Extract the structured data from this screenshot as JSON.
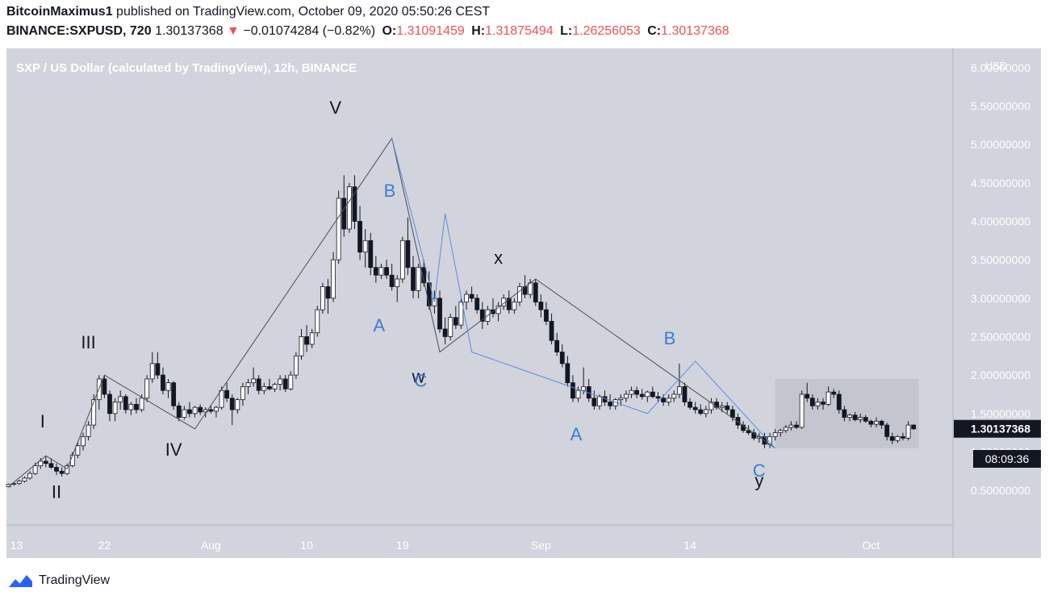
{
  "header": {
    "author": "BitcoinMaximus1",
    "published": "published on TradingView.com, October 09, 2020 05:50:26 CEST",
    "symbol": "BINANCE:SXPUSD, 720",
    "last": "1.30137368",
    "arrow": "▼",
    "change": "−0.01074284 (−0.82%)",
    "o_label": "O:",
    "o": "1.31091459",
    "h_label": "H:",
    "h": "1.31875494",
    "l_label": "L:",
    "l": "1.26256053",
    "c_label": "C:",
    "c": "1.30137368"
  },
  "footer": {
    "brand": "TradingView",
    "logo_icon": "tradingview-logo-icon"
  },
  "colors": {
    "plot_bg": "#d1d4dc",
    "zone": "#c3c6ce",
    "black_wave": "#4a4e58",
    "blue_wave": "#5b8dd9",
    "label_blue": "#3d7bd6"
  },
  "chart_data": {
    "type": "candlestick",
    "title": "SXP / US Dollar (calculated by TradingView), 12h, BINANCE",
    "currency": "USD",
    "ylim": [
      0.05,
      6.25
    ],
    "y_ticks": [
      "6.00000000",
      "5.50000000",
      "5.00000000",
      "4.50000000",
      "4.00000000",
      "3.50000000",
      "3.00000000",
      "2.50000000",
      "2.00000000",
      "1.50000000",
      "1.00000000",
      "0.50000000"
    ],
    "y_tick_values": [
      6.0,
      5.5,
      5.0,
      4.5,
      4.0,
      3.5,
      3.0,
      2.5,
      2.0,
      1.5,
      1.0,
      0.5
    ],
    "x_ticks": [
      "13",
      "22",
      "Aug",
      "10",
      "19",
      "Sep",
      "14",
      "Oct"
    ],
    "x_tick_days": [
      0,
      9,
      19,
      28,
      37,
      50,
      64,
      81
    ],
    "x_unit": "days since Jul 13, 2020",
    "x_range": [
      -0.2,
      88.7
    ],
    "price_label": "1.30137368",
    "countdown": "08:09:36",
    "ohlc": [
      [
        0.55,
        0.59,
        0.54,
        0.58
      ],
      [
        0.58,
        0.6,
        0.56,
        0.59
      ],
      [
        0.59,
        0.64,
        0.57,
        0.62
      ],
      [
        0.62,
        0.68,
        0.6,
        0.66
      ],
      [
        0.66,
        0.75,
        0.64,
        0.72
      ],
      [
        0.72,
        0.86,
        0.7,
        0.82
      ],
      [
        0.82,
        0.92,
        0.78,
        0.88
      ],
      [
        0.88,
        0.95,
        0.8,
        0.85
      ],
      [
        0.85,
        0.92,
        0.78,
        0.8
      ],
      [
        0.8,
        0.85,
        0.7,
        0.75
      ],
      [
        0.75,
        0.8,
        0.68,
        0.72
      ],
      [
        0.72,
        0.85,
        0.7,
        0.82
      ],
      [
        0.82,
        1.0,
        0.8,
        0.96
      ],
      [
        0.96,
        1.12,
        0.92,
        1.08
      ],
      [
        1.08,
        1.25,
        1.02,
        1.2
      ],
      [
        1.2,
        1.4,
        1.15,
        1.35
      ],
      [
        1.35,
        1.75,
        1.3,
        1.68
      ],
      [
        1.68,
        2.0,
        1.55,
        1.95
      ],
      [
        1.95,
        2.0,
        1.7,
        1.75
      ],
      [
        1.75,
        1.8,
        1.4,
        1.5
      ],
      [
        1.5,
        1.7,
        1.4,
        1.65
      ],
      [
        1.65,
        1.8,
        1.55,
        1.72
      ],
      [
        1.72,
        1.75,
        1.5,
        1.55
      ],
      [
        1.55,
        1.65,
        1.48,
        1.62
      ],
      [
        1.62,
        1.7,
        1.5,
        1.55
      ],
      [
        1.55,
        1.75,
        1.52,
        1.7
      ],
      [
        1.7,
        2.0,
        1.65,
        1.95
      ],
      [
        1.95,
        2.3,
        1.9,
        2.15
      ],
      [
        2.15,
        2.3,
        1.95,
        2.0
      ],
      [
        2.0,
        2.1,
        1.75,
        1.8
      ],
      [
        1.8,
        1.95,
        1.7,
        1.9
      ],
      [
        1.9,
        1.92,
        1.55,
        1.6
      ],
      [
        1.6,
        1.65,
        1.4,
        1.45
      ],
      [
        1.45,
        1.6,
        1.42,
        1.55
      ],
      [
        1.55,
        1.65,
        1.45,
        1.5
      ],
      [
        1.5,
        1.6,
        1.45,
        1.58
      ],
      [
        1.58,
        1.62,
        1.48,
        1.52
      ],
      [
        1.52,
        1.58,
        1.45,
        1.55
      ],
      [
        1.55,
        1.6,
        1.5,
        1.53
      ],
      [
        1.53,
        1.6,
        1.45,
        1.58
      ],
      [
        1.58,
        1.85,
        1.55,
        1.8
      ],
      [
        1.8,
        1.9,
        1.65,
        1.7
      ],
      [
        1.7,
        1.75,
        1.35,
        1.55
      ],
      [
        1.55,
        1.7,
        1.5,
        1.68
      ],
      [
        1.68,
        1.9,
        1.6,
        1.85
      ],
      [
        1.85,
        1.95,
        1.75,
        1.9
      ],
      [
        1.9,
        2.1,
        1.85,
        1.95
      ],
      [
        1.95,
        2.0,
        1.75,
        1.8
      ],
      [
        1.8,
        1.9,
        1.75,
        1.85
      ],
      [
        1.85,
        1.95,
        1.8,
        1.82
      ],
      [
        1.82,
        1.9,
        1.78,
        1.88
      ],
      [
        1.88,
        2.0,
        1.8,
        1.95
      ],
      [
        1.95,
        2.0,
        1.78,
        1.82
      ],
      [
        1.82,
        2.05,
        1.8,
        2.0
      ],
      [
        2.0,
        2.3,
        1.95,
        2.25
      ],
      [
        2.25,
        2.6,
        2.2,
        2.5
      ],
      [
        2.5,
        2.65,
        2.3,
        2.4
      ],
      [
        2.4,
        2.6,
        2.35,
        2.55
      ],
      [
        2.55,
        2.9,
        2.5,
        2.85
      ],
      [
        2.85,
        3.2,
        2.8,
        3.15
      ],
      [
        3.15,
        3.25,
        2.8,
        3.0
      ],
      [
        3.0,
        3.6,
        2.95,
        3.5
      ],
      [
        3.5,
        4.4,
        3.45,
        4.3
      ],
      [
        4.3,
        4.6,
        3.8,
        3.9
      ],
      [
        3.9,
        4.5,
        3.85,
        4.45
      ],
      [
        4.45,
        4.6,
        3.9,
        4.0
      ],
      [
        4.0,
        4.2,
        3.5,
        3.6
      ],
      [
        3.6,
        3.9,
        3.4,
        3.75
      ],
      [
        3.75,
        3.85,
        3.3,
        3.4
      ],
      [
        3.4,
        3.55,
        3.2,
        3.3
      ],
      [
        3.3,
        3.45,
        3.25,
        3.4
      ],
      [
        3.4,
        3.5,
        3.25,
        3.3
      ],
      [
        3.3,
        3.45,
        3.1,
        3.15
      ],
      [
        3.15,
        3.3,
        2.95,
        3.25
      ],
      [
        3.25,
        3.8,
        3.2,
        3.75
      ],
      [
        3.75,
        4.05,
        3.3,
        3.4
      ],
      [
        3.4,
        3.55,
        3.0,
        3.1
      ],
      [
        3.1,
        3.45,
        3.0,
        3.4
      ],
      [
        3.4,
        3.5,
        3.15,
        3.2
      ],
      [
        3.2,
        3.35,
        2.85,
        2.9
      ],
      [
        2.9,
        3.1,
        2.8,
        3.0
      ],
      [
        3.0,
        3.1,
        2.55,
        2.6
      ],
      [
        2.6,
        2.75,
        2.4,
        2.5
      ],
      [
        2.5,
        2.8,
        2.45,
        2.75
      ],
      [
        2.75,
        2.9,
        2.6,
        2.65
      ],
      [
        2.65,
        3.0,
        2.6,
        2.95
      ],
      [
        2.95,
        3.1,
        2.85,
        3.05
      ],
      [
        3.05,
        3.15,
        2.95,
        3.0
      ],
      [
        3.0,
        3.05,
        2.8,
        2.85
      ],
      [
        2.85,
        2.95,
        2.6,
        2.7
      ],
      [
        2.7,
        2.9,
        2.65,
        2.85
      ],
      [
        2.85,
        3.0,
        2.75,
        2.8
      ],
      [
        2.8,
        2.95,
        2.7,
        2.9
      ],
      [
        2.9,
        3.05,
        2.85,
        3.0
      ],
      [
        3.0,
        3.1,
        2.8,
        2.85
      ],
      [
        2.85,
        3.0,
        2.8,
        2.95
      ],
      [
        2.95,
        3.2,
        2.9,
        3.15
      ],
      [
        3.15,
        3.3,
        3.0,
        3.05
      ],
      [
        3.05,
        3.25,
        3.0,
        3.2
      ],
      [
        3.2,
        3.25,
        2.9,
        2.95
      ],
      [
        2.95,
        3.05,
        2.75,
        2.85
      ],
      [
        2.85,
        2.95,
        2.65,
        2.7
      ],
      [
        2.7,
        2.8,
        2.4,
        2.45
      ],
      [
        2.45,
        2.55,
        2.25,
        2.3
      ],
      [
        2.3,
        2.4,
        2.1,
        2.15
      ],
      [
        2.15,
        2.25,
        1.85,
        1.9
      ],
      [
        1.9,
        2.0,
        1.65,
        1.7
      ],
      [
        1.7,
        1.85,
        1.65,
        1.8
      ],
      [
        1.8,
        2.1,
        1.75,
        1.85
      ],
      [
        1.85,
        1.95,
        1.65,
        1.7
      ],
      [
        1.7,
        1.8,
        1.55,
        1.6
      ],
      [
        1.6,
        1.75,
        1.55,
        1.72
      ],
      [
        1.72,
        1.8,
        1.6,
        1.65
      ],
      [
        1.65,
        1.75,
        1.55,
        1.6
      ],
      [
        1.6,
        1.7,
        1.55,
        1.68
      ],
      [
        1.68,
        1.75,
        1.6,
        1.7
      ],
      [
        1.7,
        1.8,
        1.65,
        1.75
      ],
      [
        1.75,
        1.85,
        1.7,
        1.8
      ],
      [
        1.8,
        1.85,
        1.7,
        1.75
      ],
      [
        1.75,
        1.82,
        1.68,
        1.72
      ],
      [
        1.72,
        1.8,
        1.65,
        1.78
      ],
      [
        1.78,
        1.85,
        1.7,
        1.72
      ],
      [
        1.72,
        1.78,
        1.65,
        1.7
      ],
      [
        1.7,
        1.75,
        1.6,
        1.65
      ],
      [
        1.65,
        1.75,
        1.6,
        1.7
      ],
      [
        1.7,
        1.8,
        1.65,
        1.75
      ],
      [
        1.75,
        2.15,
        1.7,
        1.85
      ],
      [
        1.85,
        1.9,
        1.6,
        1.65
      ],
      [
        1.65,
        1.7,
        1.55,
        1.58
      ],
      [
        1.58,
        1.65,
        1.5,
        1.55
      ],
      [
        1.55,
        1.62,
        1.48,
        1.5
      ],
      [
        1.5,
        1.6,
        1.45,
        1.55
      ],
      [
        1.55,
        1.7,
        1.5,
        1.65
      ],
      [
        1.65,
        1.7,
        1.55,
        1.58
      ],
      [
        1.58,
        1.65,
        1.52,
        1.6
      ],
      [
        1.6,
        1.65,
        1.5,
        1.55
      ],
      [
        1.55,
        1.6,
        1.4,
        1.45
      ],
      [
        1.45,
        1.5,
        1.3,
        1.35
      ],
      [
        1.35,
        1.4,
        1.25,
        1.28
      ],
      [
        1.28,
        1.35,
        1.22,
        1.25
      ],
      [
        1.25,
        1.3,
        1.15,
        1.18
      ],
      [
        1.18,
        1.25,
        1.12,
        1.2
      ],
      [
        1.2,
        1.25,
        1.05,
        1.1
      ],
      [
        1.1,
        1.25,
        1.05,
        1.2
      ],
      [
        1.2,
        1.3,
        1.15,
        1.25
      ],
      [
        1.25,
        1.3,
        1.2,
        1.28
      ],
      [
        1.28,
        1.35,
        1.25,
        1.32
      ],
      [
        1.32,
        1.4,
        1.28,
        1.35
      ],
      [
        1.35,
        1.4,
        1.3,
        1.32
      ],
      [
        1.32,
        1.8,
        1.3,
        1.75
      ],
      [
        1.75,
        1.9,
        1.65,
        1.7
      ],
      [
        1.7,
        1.75,
        1.55,
        1.6
      ],
      [
        1.6,
        1.7,
        1.55,
        1.65
      ],
      [
        1.65,
        1.7,
        1.55,
        1.62
      ],
      [
        1.62,
        1.85,
        1.6,
        1.78
      ],
      [
        1.78,
        1.82,
        1.7,
        1.75
      ],
      [
        1.75,
        1.8,
        1.5,
        1.55
      ],
      [
        1.55,
        1.6,
        1.4,
        1.45
      ],
      [
        1.45,
        1.5,
        1.4,
        1.48
      ],
      [
        1.48,
        1.52,
        1.4,
        1.42
      ],
      [
        1.42,
        1.5,
        1.38,
        1.45
      ],
      [
        1.45,
        1.48,
        1.38,
        1.4
      ],
      [
        1.4,
        1.42,
        1.32,
        1.36
      ],
      [
        1.36,
        1.45,
        1.32,
        1.4
      ],
      [
        1.4,
        1.42,
        1.3,
        1.35
      ],
      [
        1.35,
        1.38,
        1.15,
        1.2
      ],
      [
        1.2,
        1.25,
        1.1,
        1.15
      ],
      [
        1.15,
        1.22,
        1.12,
        1.2
      ],
      [
        1.2,
        1.25,
        1.15,
        1.18
      ],
      [
        1.18,
        1.4,
        1.15,
        1.35
      ],
      [
        1.35,
        1.36,
        1.29,
        1.3
      ]
    ],
    "black_wave": [
      [
        0,
        0.55
      ],
      [
        3.5,
        0.95
      ],
      [
        5.5,
        0.78
      ],
      [
        9,
        2.0
      ],
      [
        17.5,
        1.3
      ],
      [
        36,
        5.08
      ],
      [
        40.5,
        2.3
      ],
      [
        49.5,
        3.25
      ],
      [
        72,
        1.05
      ]
    ],
    "blue_wave": [
      [
        36,
        5.08
      ],
      [
        40,
        2.95
      ],
      [
        41,
        4.1
      ],
      [
        43.5,
        2.3
      ],
      [
        60,
        1.5
      ],
      [
        64.5,
        2.18
      ],
      [
        72,
        1.05
      ]
    ],
    "zone": {
      "x0": 72,
      "x1": 85.5,
      "y0": 1.05,
      "y1": 1.95
    },
    "wave_labels": [
      {
        "text": "I",
        "x": 3.2,
        "y": 1.32,
        "color": "black"
      },
      {
        "text": "II",
        "x": 4.5,
        "y": 0.4,
        "color": "black"
      },
      {
        "text": "III",
        "x": 7.5,
        "y": 2.35,
        "color": "black"
      },
      {
        "text": "IV",
        "x": 15.5,
        "y": 0.95,
        "color": "black"
      },
      {
        "text": "V",
        "x": 30.7,
        "y": 5.4,
        "color": "black"
      },
      {
        "text": "B",
        "x": 35.8,
        "y": 4.32,
        "color": "blue"
      },
      {
        "text": "A",
        "x": 34.8,
        "y": 2.57,
        "color": "blue"
      },
      {
        "text": "w",
        "x": 38.5,
        "y": 1.9,
        "color": "black"
      },
      {
        "text": "C",
        "x": 38.7,
        "y": 1.85,
        "color": "blue"
      },
      {
        "text": "x",
        "x": 46.0,
        "y": 3.45,
        "color": "black"
      },
      {
        "text": "B",
        "x": 62.1,
        "y": 2.4,
        "color": "blue"
      },
      {
        "text": "A",
        "x": 53.3,
        "y": 1.15,
        "color": "blue"
      },
      {
        "text": "C",
        "x": 70.5,
        "y": 0.68,
        "color": "blue"
      },
      {
        "text": "y",
        "x": 70.5,
        "y": 0.55,
        "color": "black"
      }
    ]
  }
}
